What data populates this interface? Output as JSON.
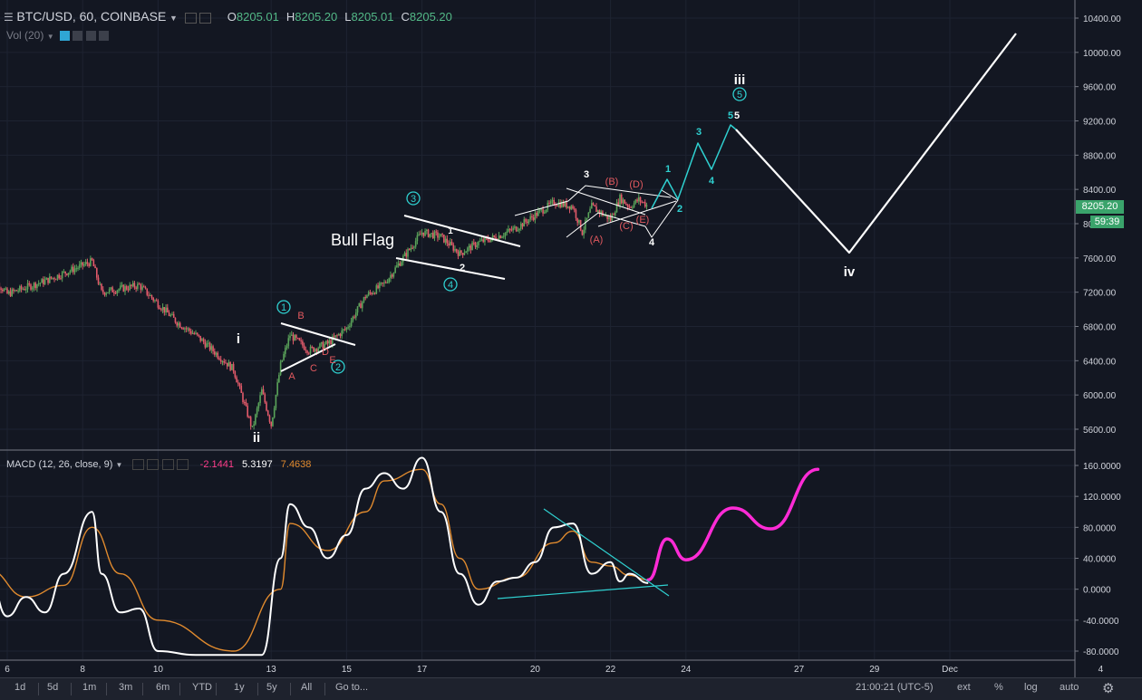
{
  "header": {
    "symbol": "BTC/USD, 60, COINBASE",
    "ohlc": [
      {
        "k": "O",
        "v": "8205.01"
      },
      {
        "k": "H",
        "v": "8205.20"
      },
      {
        "k": "L",
        "v": "8205.01"
      },
      {
        "k": "C",
        "v": "8205.20"
      }
    ],
    "vol_label": "Vol (20)"
  },
  "macd_header": {
    "label": "MACD (12, 26, close, 9)",
    "v1": "-2.1441",
    "v2": "5.3197",
    "v3": "7.4638"
  },
  "colors": {
    "background": "#131722",
    "up": "#5aa35a",
    "down": "#e25a6a",
    "macd_line": "#ffffff",
    "signal_line": "#e08a2e",
    "projection": "#ff2bd6",
    "wave_cyan": "#2fd0d0",
    "wave_red": "#e2595f",
    "price_tag": "#3aa36b"
  },
  "price_axis": {
    "ticks": [
      "10400.00",
      "10000.00",
      "9600.00",
      "9200.00",
      "8800.00",
      "8400.00",
      "8000.00",
      "7600.00",
      "7200.00",
      "6800.00",
      "6400.00",
      "6000.00",
      "5600.00"
    ],
    "last_price": "8205.20",
    "countdown": "59:39"
  },
  "macd_axis": {
    "ticks": [
      "160.0000",
      "120.0000",
      "80.0000",
      "40.0000",
      "0.0000",
      "-40.0000",
      "-80.0000"
    ]
  },
  "time_axis": {
    "labels": [
      "6",
      "8",
      "10",
      "13",
      "15",
      "17",
      "20",
      "22",
      "24",
      "27",
      "29",
      "Dec",
      "4"
    ]
  },
  "bottom_toolbar": {
    "timeframes": [
      "1d",
      "5d",
      "1m",
      "3m",
      "6m",
      "YTD",
      "1y",
      "5y",
      "All"
    ],
    "goto": "Go to...",
    "clock": "21:00:21 (UTC-5)",
    "options": [
      "ext",
      "%",
      "log",
      "auto"
    ]
  },
  "annotations": {
    "bull_flag": "Bull Flag",
    "roman": [
      "i",
      "ii",
      "iii",
      "iv"
    ],
    "circled": [
      "1",
      "2",
      "3",
      "4",
      "5"
    ],
    "abcde_small": [
      "A",
      "B",
      "C",
      "D",
      "E"
    ],
    "abcde_paren": [
      "(A)",
      "(B)",
      "(C)",
      "(D)",
      "(E)"
    ],
    "white_nums": [
      "1",
      "2",
      "3",
      "4"
    ],
    "cyan_nums": [
      "1",
      "2",
      "3",
      "4",
      "5"
    ]
  },
  "chart_data": [
    {
      "type": "candlestick",
      "title": "BTC/USD, 60, COINBASE",
      "ylim": [
        5400,
        10550
      ],
      "x_labels": [
        "6",
        "8",
        "10",
        "13",
        "15",
        "17",
        "20",
        "22",
        "24",
        "27",
        "29",
        "Dec",
        "4"
      ],
      "price_path": [
        [
          "Nov 5 12:00",
          7430
        ],
        [
          "Nov 6 00:00",
          7180
        ],
        [
          "Nov 7 00:00",
          7330
        ],
        [
          "Nov 8 06:00",
          7560
        ],
        [
          "Nov 8 12:00",
          7200
        ],
        [
          "Nov 9 12:00",
          7280
        ],
        [
          "Nov 10 12:00",
          6850
        ],
        [
          "Nov 11 00:00",
          6700
        ],
        [
          "Nov 11 12:00",
          6500
        ],
        [
          "Nov 12 00:00",
          6300
        ],
        [
          "Nov 12 12:00",
          5600
        ],
        [
          "Nov 12 18:00",
          6050
        ],
        [
          "Nov 13 00:00",
          5650
        ],
        [
          "Nov 13 06:00",
          6350
        ],
        [
          "Nov 13 12:00",
          6700
        ],
        [
          "Nov 14 00:00",
          6520
        ],
        [
          "Nov 14 12:00",
          6600
        ],
        [
          "Nov 15 00:00",
          6780
        ],
        [
          "Nov 15 12:00",
          7150
        ],
        [
          "Nov 16 00:00",
          7300
        ],
        [
          "Nov 16 12:00",
          7600
        ],
        [
          "Nov 17 00:00",
          7900
        ],
        [
          "Nov 17 12:00",
          7850
        ],
        [
          "Nov 18 00:00",
          7650
        ],
        [
          "Nov 18 12:00",
          7780
        ],
        [
          "Nov 19 00:00",
          7850
        ],
        [
          "Nov 19 12:00",
          7950
        ],
        [
          "Nov 20 00:00",
          8100
        ],
        [
          "Nov 20 12:00",
          8250
        ],
        [
          "Nov 21 00:00",
          8200
        ],
        [
          "Nov 21 06:00",
          7900
        ],
        [
          "Nov 21 12:00",
          8200
        ],
        [
          "Nov 22 00:00",
          8050
        ],
        [
          "Nov 22 06:00",
          8300
        ],
        [
          "Nov 22 12:00",
          8200
        ],
        [
          "Nov 22 18:00",
          8280
        ],
        [
          "Nov 23 00:00",
          8205
        ]
      ],
      "last_price": 8205.2,
      "projection_path": [
        [
          "Nov 26 00:00",
          9140
        ],
        [
          "Nov 28 12:00",
          7650
        ],
        [
          "Dec 3 00:00",
          10200
        ]
      ],
      "annotations": {
        "wave_labels": [
          "i",
          "ii",
          "iii",
          "iv",
          "1",
          "2",
          "3",
          "4",
          "5"
        ],
        "pattern": "Bull Flag"
      }
    },
    {
      "type": "line",
      "title": "MACD (12, 26, close, 9)",
      "ylim": [
        -85,
        178
      ],
      "series": [
        {
          "name": "MACD",
          "values": [
            [
              "Nov 5 12:00",
              20
            ],
            [
              "Nov 6 00:00",
              -35
            ],
            [
              "Nov 6 12:00",
              -10
            ],
            [
              "Nov 7 00:00",
              -30
            ],
            [
              "Nov 7 12:00",
              20
            ],
            [
              "Nov 8 06:00",
              100
            ],
            [
              "Nov 8 12:00",
              20
            ],
            [
              "Nov 9 00:00",
              -30
            ],
            [
              "Nov 9 12:00",
              -25
            ],
            [
              "Nov 10 00:00",
              -80
            ],
            [
              "Nov 11 00:00",
              -85
            ],
            [
              "Nov 12 00:00",
              -85
            ],
            [
              "Nov 12 18:00",
              -85
            ],
            [
              "Nov 13 06:00",
              40
            ],
            [
              "Nov 13 12:00",
              110
            ],
            [
              "Nov 14 00:00",
              80
            ],
            [
              "Nov 14 12:00",
              40
            ],
            [
              "Nov 15 00:00",
              70
            ],
            [
              "Nov 15 12:00",
              130
            ],
            [
              "Nov 16 00:00",
              150
            ],
            [
              "Nov 16 12:00",
              130
            ],
            [
              "Nov 17 00:00",
              170
            ],
            [
              "Nov 17 12:00",
              100
            ],
            [
              "Nov 18 00:00",
              20
            ],
            [
              "Nov 18 12:00",
              -20
            ],
            [
              "Nov 19 00:00",
              10
            ],
            [
              "Nov 19 12:00",
              15
            ],
            [
              "Nov 20 00:00",
              35
            ],
            [
              "Nov 20 12:00",
              80
            ],
            [
              "Nov 21 00:00",
              85
            ],
            [
              "Nov 21 12:00",
              20
            ],
            [
              "Nov 22 00:00",
              35
            ],
            [
              "Nov 22 06:00",
              10
            ],
            [
              "Nov 22 12:00",
              20
            ],
            [
              "Nov 23 00:00",
              8
            ]
          ]
        },
        {
          "name": "Signal",
          "values": [
            [
              "Nov 5 12:00",
              25
            ],
            [
              "Nov 6 12:00",
              -10
            ],
            [
              "Nov 7 12:00",
              5
            ],
            [
              "Nov 8 06:00",
              80
            ],
            [
              "Nov 9 00:00",
              20
            ],
            [
              "Nov 10 00:00",
              -40
            ],
            [
              "Nov 12 00:00",
              -80
            ],
            [
              "Nov 13 06:00",
              0
            ],
            [
              "Nov 13 12:00",
              85
            ],
            [
              "Nov 14 12:00",
              50
            ],
            [
              "Nov 15 12:00",
              100
            ],
            [
              "Nov 16 00:00",
              140
            ],
            [
              "Nov 17 00:00",
              155
            ],
            [
              "Nov 17 12:00",
              110
            ],
            [
              "Nov 18 00:00",
              40
            ],
            [
              "Nov 18 12:00",
              0
            ],
            [
              "Nov 19 12:00",
              15
            ],
            [
              "Nov 20 12:00",
              60
            ],
            [
              "Nov 21 00:00",
              75
            ],
            [
              "Nov 21 12:00",
              35
            ],
            [
              "Nov 22 00:00",
              30
            ],
            [
              "Nov 22 12:00",
              18
            ],
            [
              "Nov 23 00:00",
              12
            ]
          ]
        },
        {
          "name": "Projection",
          "values": [
            [
              "Nov 23 00:00",
              12
            ],
            [
              "Nov 23 12:00",
              65
            ],
            [
              "Nov 24 00:00",
              38
            ],
            [
              "Nov 25 06:00",
              105
            ],
            [
              "Nov 26 06:00",
              78
            ],
            [
              "Nov 27 12:00",
              155
            ]
          ]
        }
      ]
    }
  ]
}
